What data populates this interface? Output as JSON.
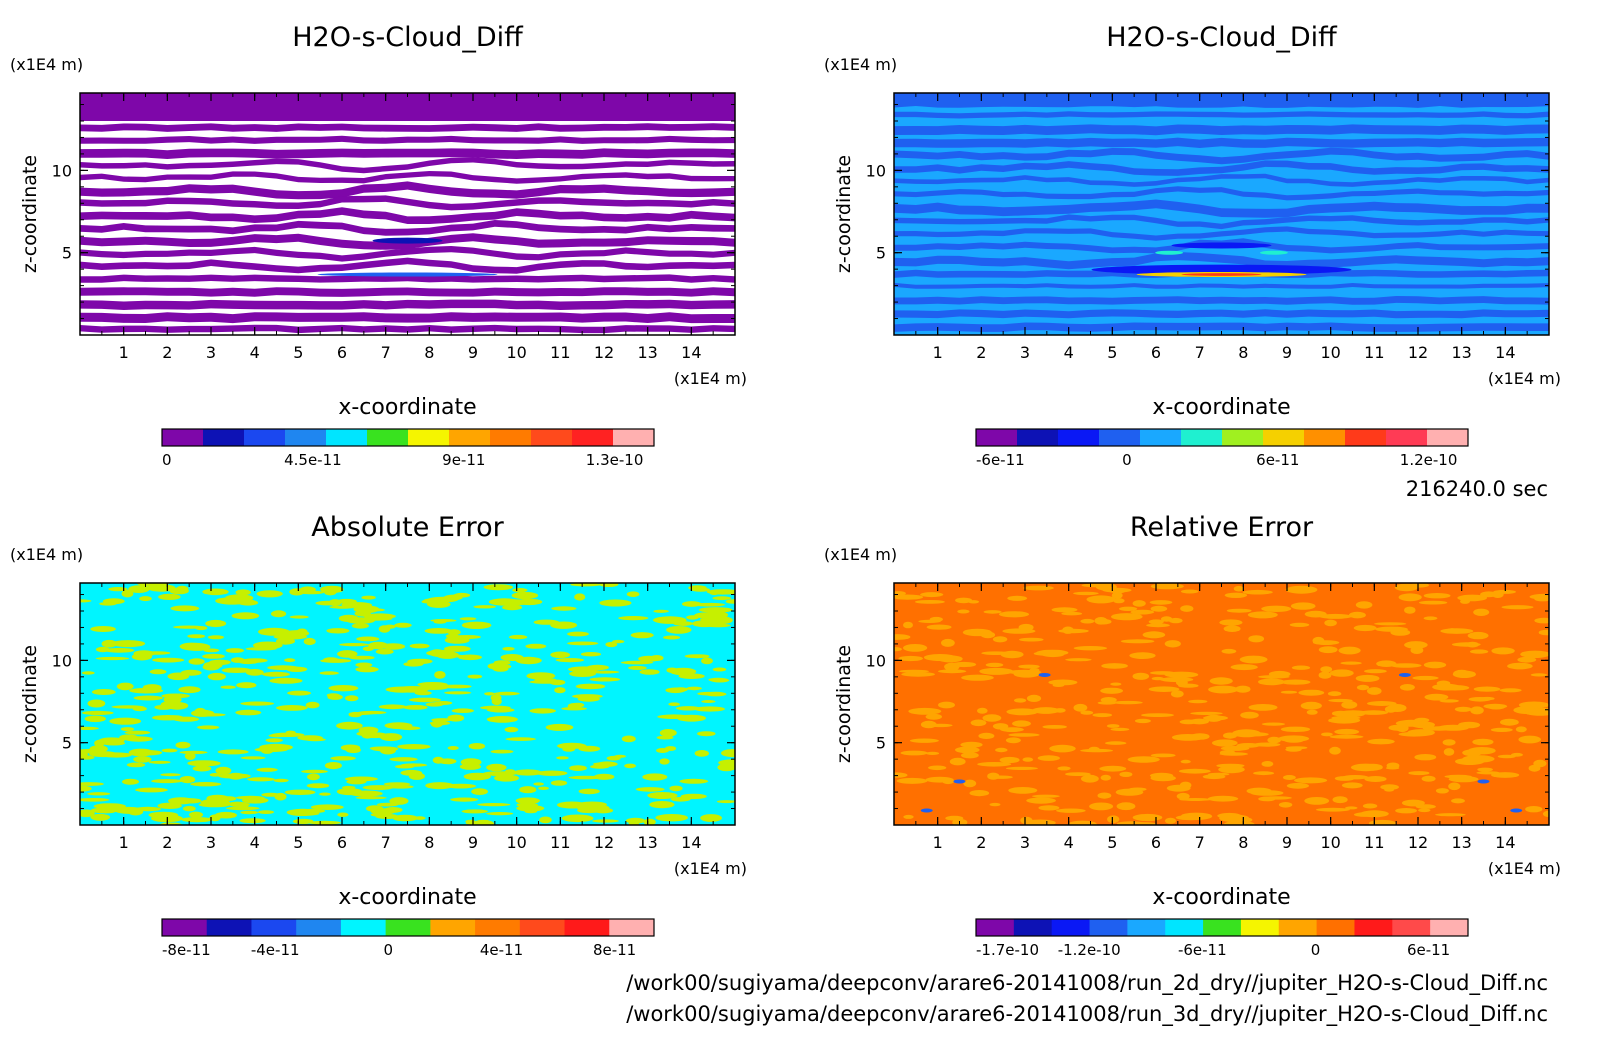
{
  "time_label": "216240.0 sec",
  "files": [
    "/work00/sugiyama/deepconv/arare6-20141008/run_2d_dry//jupiter_H2O-s-Cloud_Diff.nc",
    "/work00/sugiyama/deepconv/arare6-20141008/run_3d_dry//jupiter_H2O-s-Cloud_Diff.nc"
  ],
  "chart_data": [
    {
      "type": "heatmap",
      "title": "H2O-s-Cloud_Diff",
      "xlabel": "x-coordinate",
      "ylabel": "z-coordinate",
      "x_unit": "(x1E4 m)",
      "y_unit": "(x1E4 m)",
      "xlim": [
        0,
        15
      ],
      "ylim": [
        0,
        14.7
      ],
      "x_ticks": [
        "1",
        "2",
        "3",
        "4",
        "5",
        "6",
        "7",
        "8",
        "9",
        "10",
        "11",
        "12",
        "13",
        "14"
      ],
      "y_ticks": [
        "5",
        "10"
      ],
      "pattern": "stripes",
      "colorbar": {
        "colors": [
          "#7e07a9",
          "#7e07a9",
          "#ffffff",
          "#ffffff",
          "#ffffff",
          "#ffffff",
          "#ffffff",
          "#ffffff",
          "#ffffff",
          "#ffffff",
          "#ffffff",
          "#ffffff",
          "#ffffff"
        ],
        "bar_colors": [
          "#7e07a9",
          "#0d12b5",
          "#1b48f0",
          "#1f86f0",
          "#00e5ff",
          "#39e21f",
          "#f5f500",
          "#ffa500",
          "#ff7b00",
          "#ff4a1c",
          "#ff2222",
          "#ffb0b0"
        ],
        "labels": [
          "0",
          "4.5e-11",
          "9e-11",
          "1.3e-10"
        ]
      },
      "accent": "#7e07a9"
    },
    {
      "type": "heatmap",
      "title": "H2O-s-Cloud_Diff",
      "xlabel": "x-coordinate",
      "ylabel": "z-coordinate",
      "x_unit": "(x1E4 m)",
      "y_unit": "(x1E4 m)",
      "xlim": [
        0,
        15
      ],
      "ylim": [
        0,
        14.7
      ],
      "x_ticks": [
        "1",
        "2",
        "3",
        "4",
        "5",
        "6",
        "7",
        "8",
        "9",
        "10",
        "11",
        "12",
        "13",
        "14"
      ],
      "y_ticks": [
        "5",
        "10"
      ],
      "pattern": "blue",
      "colorbar": {
        "bar_colors": [
          "#7e07a9",
          "#0d12b5",
          "#0a18f5",
          "#1f60f0",
          "#1aa8ff",
          "#1ff0d0",
          "#a0f020",
          "#f5d000",
          "#ff9000",
          "#ff3a1a",
          "#ff3b55",
          "#ffb0b0"
        ],
        "labels": [
          "-6e-11",
          "0",
          "6e-11",
          "1.2e-10"
        ]
      },
      "accent": "#1f86f0"
    },
    {
      "type": "heatmap",
      "title": "Absolute Error",
      "xlabel": "x-coordinate",
      "ylabel": "z-coordinate",
      "x_unit": "(x1E4 m)",
      "y_unit": "(x1E4 m)",
      "xlim": [
        0,
        15
      ],
      "ylim": [
        0,
        14.7
      ],
      "x_ticks": [
        "1",
        "2",
        "3",
        "4",
        "5",
        "6",
        "7",
        "8",
        "9",
        "10",
        "11",
        "12",
        "13",
        "14"
      ],
      "y_ticks": [
        "5",
        "10"
      ],
      "pattern": "cyanyellow",
      "colorbar": {
        "bar_colors": [
          "#7e07a9",
          "#0d12b5",
          "#1b48f0",
          "#1f86f0",
          "#00f5ff",
          "#39e21f",
          "#ffa500",
          "#ff7b00",
          "#ff4a1c",
          "#ff1a1a",
          "#ffb0b0"
        ],
        "labels": [
          "-8e-11",
          "-4e-11",
          "0",
          "4e-11",
          "8e-11"
        ]
      },
      "accent": "#00f5ff"
    },
    {
      "type": "heatmap",
      "title": "Relative Error",
      "xlabel": "x-coordinate",
      "ylabel": "z-coordinate",
      "x_unit": "(x1E4 m)",
      "y_unit": "(x1E4 m)",
      "xlim": [
        0,
        15
      ],
      "ylim": [
        0,
        14.7
      ],
      "x_ticks": [
        "1",
        "2",
        "3",
        "4",
        "5",
        "6",
        "7",
        "8",
        "9",
        "10",
        "11",
        "12",
        "13",
        "14"
      ],
      "y_ticks": [
        "5",
        "10"
      ],
      "pattern": "orange",
      "colorbar": {
        "bar_colors": [
          "#7e07a9",
          "#0d12b5",
          "#0a18f5",
          "#1f60f0",
          "#1aa8ff",
          "#00e5ff",
          "#39e21f",
          "#f5f500",
          "#ffa500",
          "#ff7000",
          "#ff1a1a",
          "#ff4a4a",
          "#ffb0b0"
        ],
        "labels": [
          "-1.7e-10",
          "-1.2e-10",
          "-6e-11",
          "0",
          "6e-11"
        ]
      },
      "accent": "#ff7000"
    }
  ]
}
